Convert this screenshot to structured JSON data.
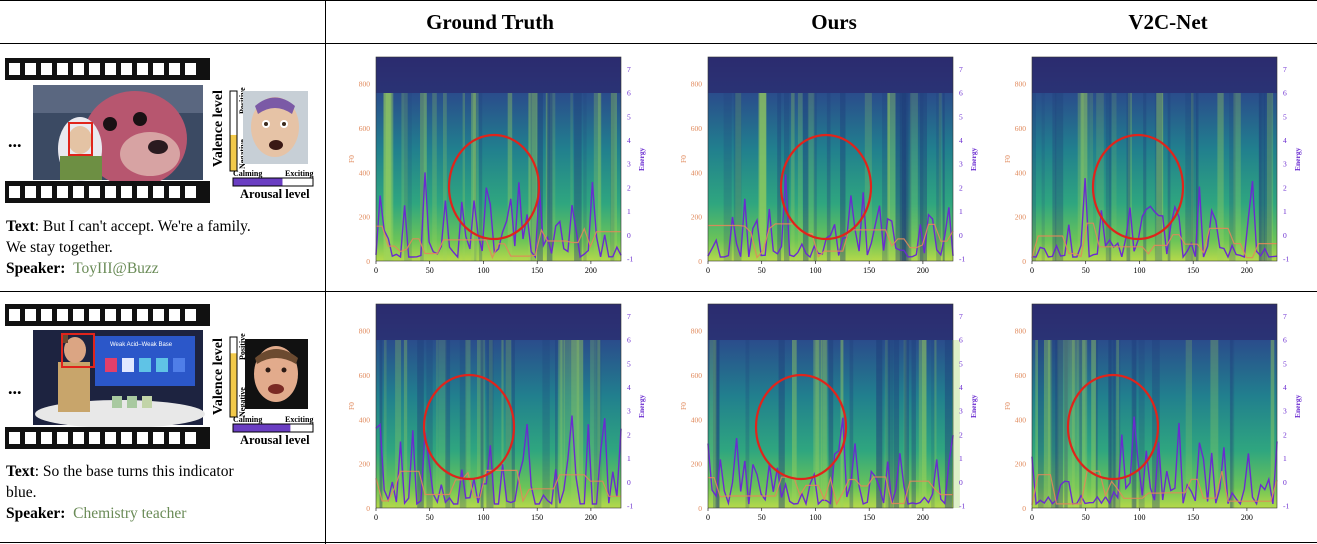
{
  "columns": [
    "Ground Truth",
    "Ours",
    "V2C-Net"
  ],
  "axis": {
    "x_ticks": [
      "0",
      "50",
      "100",
      "150",
      "200"
    ],
    "f0_ticks": [
      "0",
      "200",
      "400",
      "600",
      "800"
    ],
    "energy_ticks": [
      "-1",
      "0",
      "1",
      "2",
      "3",
      "4",
      "5",
      "6",
      "7"
    ],
    "f0_label": "F0",
    "energy_label": "Energy"
  },
  "colors": {
    "f0_line": "#e0885a",
    "energy_line": "#6a2bd0",
    "circle": "#e0241b",
    "speaker_text": "#6a8b57"
  },
  "rows": [
    {
      "ellipsis": "...",
      "valence_label": "Valence level",
      "positive": "Positive",
      "negative": "Negative",
      "calming": "Calming",
      "exciting": "Exciting",
      "arousal_label": "Arousal level",
      "valence_level": 0.45,
      "arousal_level": 0.62,
      "text_label": "Text",
      "text_line1": ": But I can't accept. We're a family.",
      "text_line2": "We stay together.",
      "speaker_label": "Speaker",
      "speaker_name": "ToyIII@Buzz"
    },
    {
      "ellipsis": "...",
      "valence_label": "Valence level",
      "positive": "Positive",
      "negative": "Negative",
      "calming": "Calming",
      "exciting": "Exciting",
      "arousal_label": "Arousal level",
      "valence_level": 0.8,
      "arousal_level": 0.72,
      "text_label": "Text",
      "text_line1": ": So the base turns this indicator",
      "text_line2": "blue.",
      "speaker_label": "Speaker",
      "speaker_name": "Chemistry teacher",
      "video_board_title": "Weak Acid–Weak Base"
    }
  ]
}
